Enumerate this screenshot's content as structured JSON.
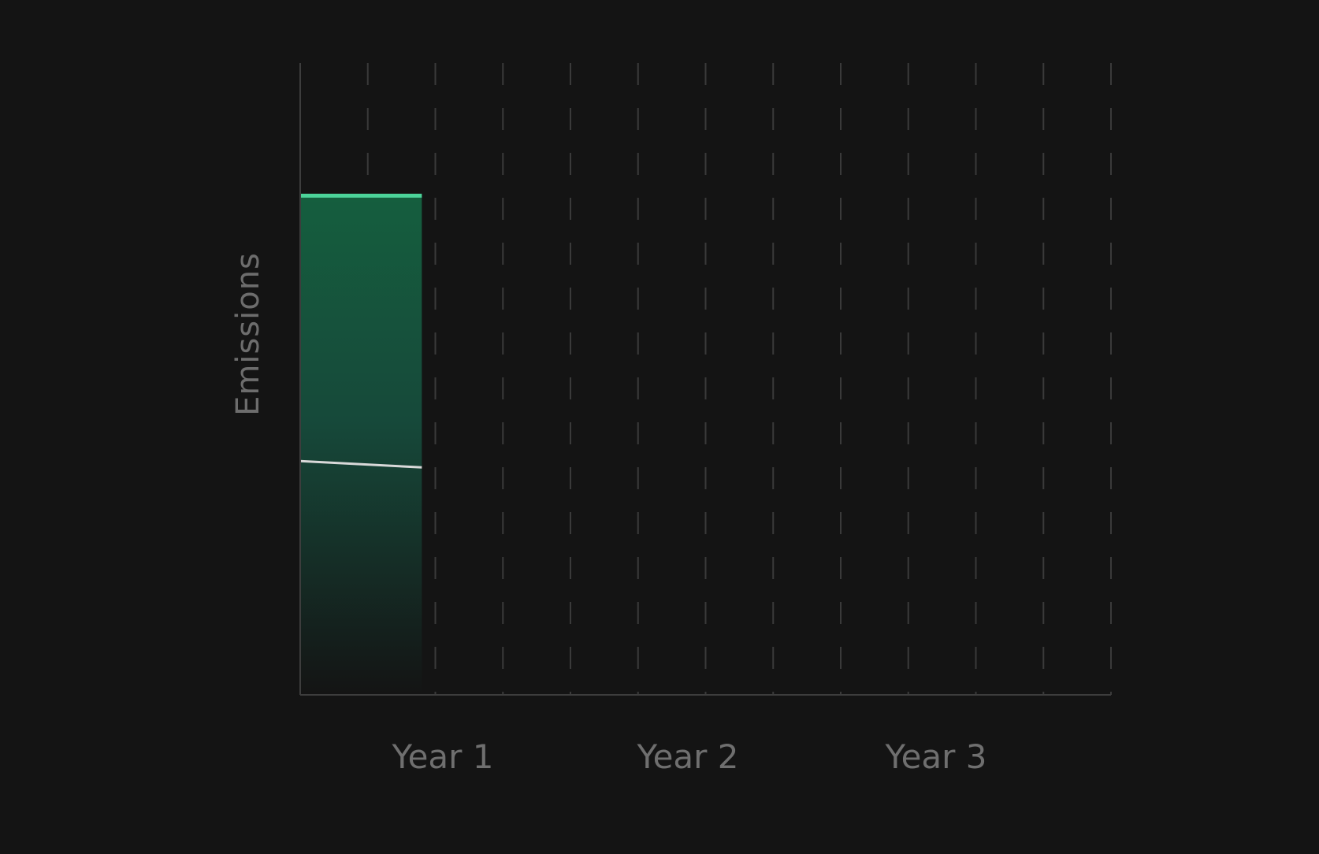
{
  "chart_data": {
    "type": "area",
    "ylabel": "Emissions",
    "xlabel": "",
    "x_ticks": [
      "Year 1",
      "Year 2",
      "Year 3"
    ],
    "x_range": [
      0,
      3
    ],
    "y_range": [
      0,
      1
    ],
    "grid": {
      "vertical": true,
      "horizontal": false,
      "style": "dashed"
    },
    "legend": "none",
    "series": [
      {
        "x": [
          0,
          0.45
        ],
        "y": [
          0.79,
          0.79
        ],
        "color": "#4cd49a",
        "fill": "gradient-green"
      },
      {
        "x": [
          0,
          0.45
        ],
        "y": [
          0.37,
          0.36
        ],
        "color": "#d9d9d9"
      }
    ],
    "colors": {
      "background": "#141414",
      "axis": "#3d3d3d",
      "grid": "#3a3a3a",
      "fill_top": "#155e3e",
      "fill_bottom": "#141414",
      "label": "#6f6f6f"
    }
  }
}
